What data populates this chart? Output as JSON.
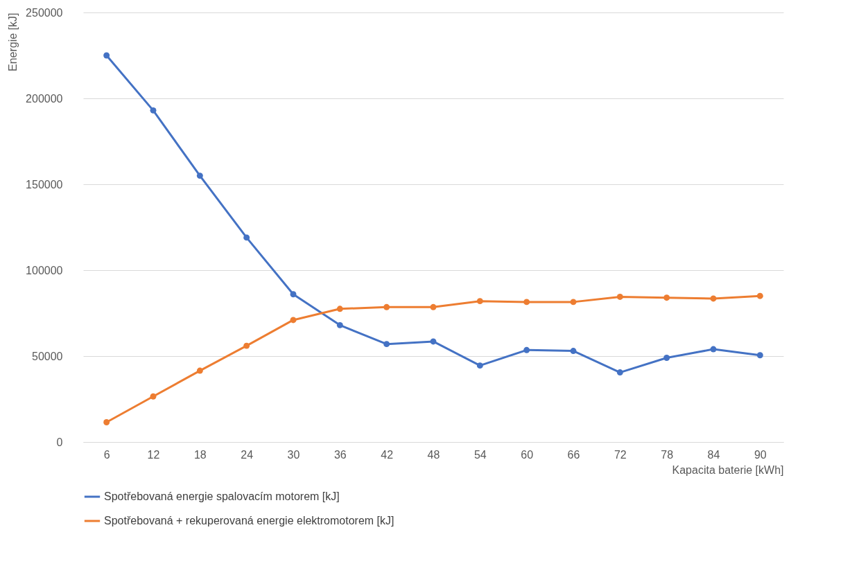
{
  "chart_data": {
    "type": "line",
    "xlabel": "Kapacita baterie [kWh]",
    "ylabel": "Energie [kJ]",
    "categories": [
      "6",
      "12",
      "18",
      "24",
      "30",
      "36",
      "42",
      "48",
      "54",
      "60",
      "66",
      "72",
      "78",
      "84",
      "90"
    ],
    "series": [
      {
        "name": "Spotřebovaná energie spalovacím motorem [kJ]",
        "color": "#4472c4",
        "values": [
          225000,
          193000,
          155000,
          119000,
          86000,
          68000,
          57000,
          58500,
          44500,
          53500,
          53000,
          40500,
          49000,
          54000,
          50500
        ]
      },
      {
        "name": "Spotřebovaná + rekuperovaná energie elektromotorem [kJ]",
        "color": "#ed7d31",
        "values": [
          11500,
          26500,
          41500,
          56000,
          71000,
          77500,
          78500,
          78500,
          82000,
          81500,
          81500,
          84500,
          84000,
          83500,
          85000
        ]
      }
    ],
    "ylim": [
      0,
      250000
    ],
    "yticks": [
      0,
      50000,
      100000,
      150000,
      200000,
      250000
    ],
    "grid": "y",
    "legend": "bottom",
    "marker": "circle",
    "line_style": "solid"
  }
}
